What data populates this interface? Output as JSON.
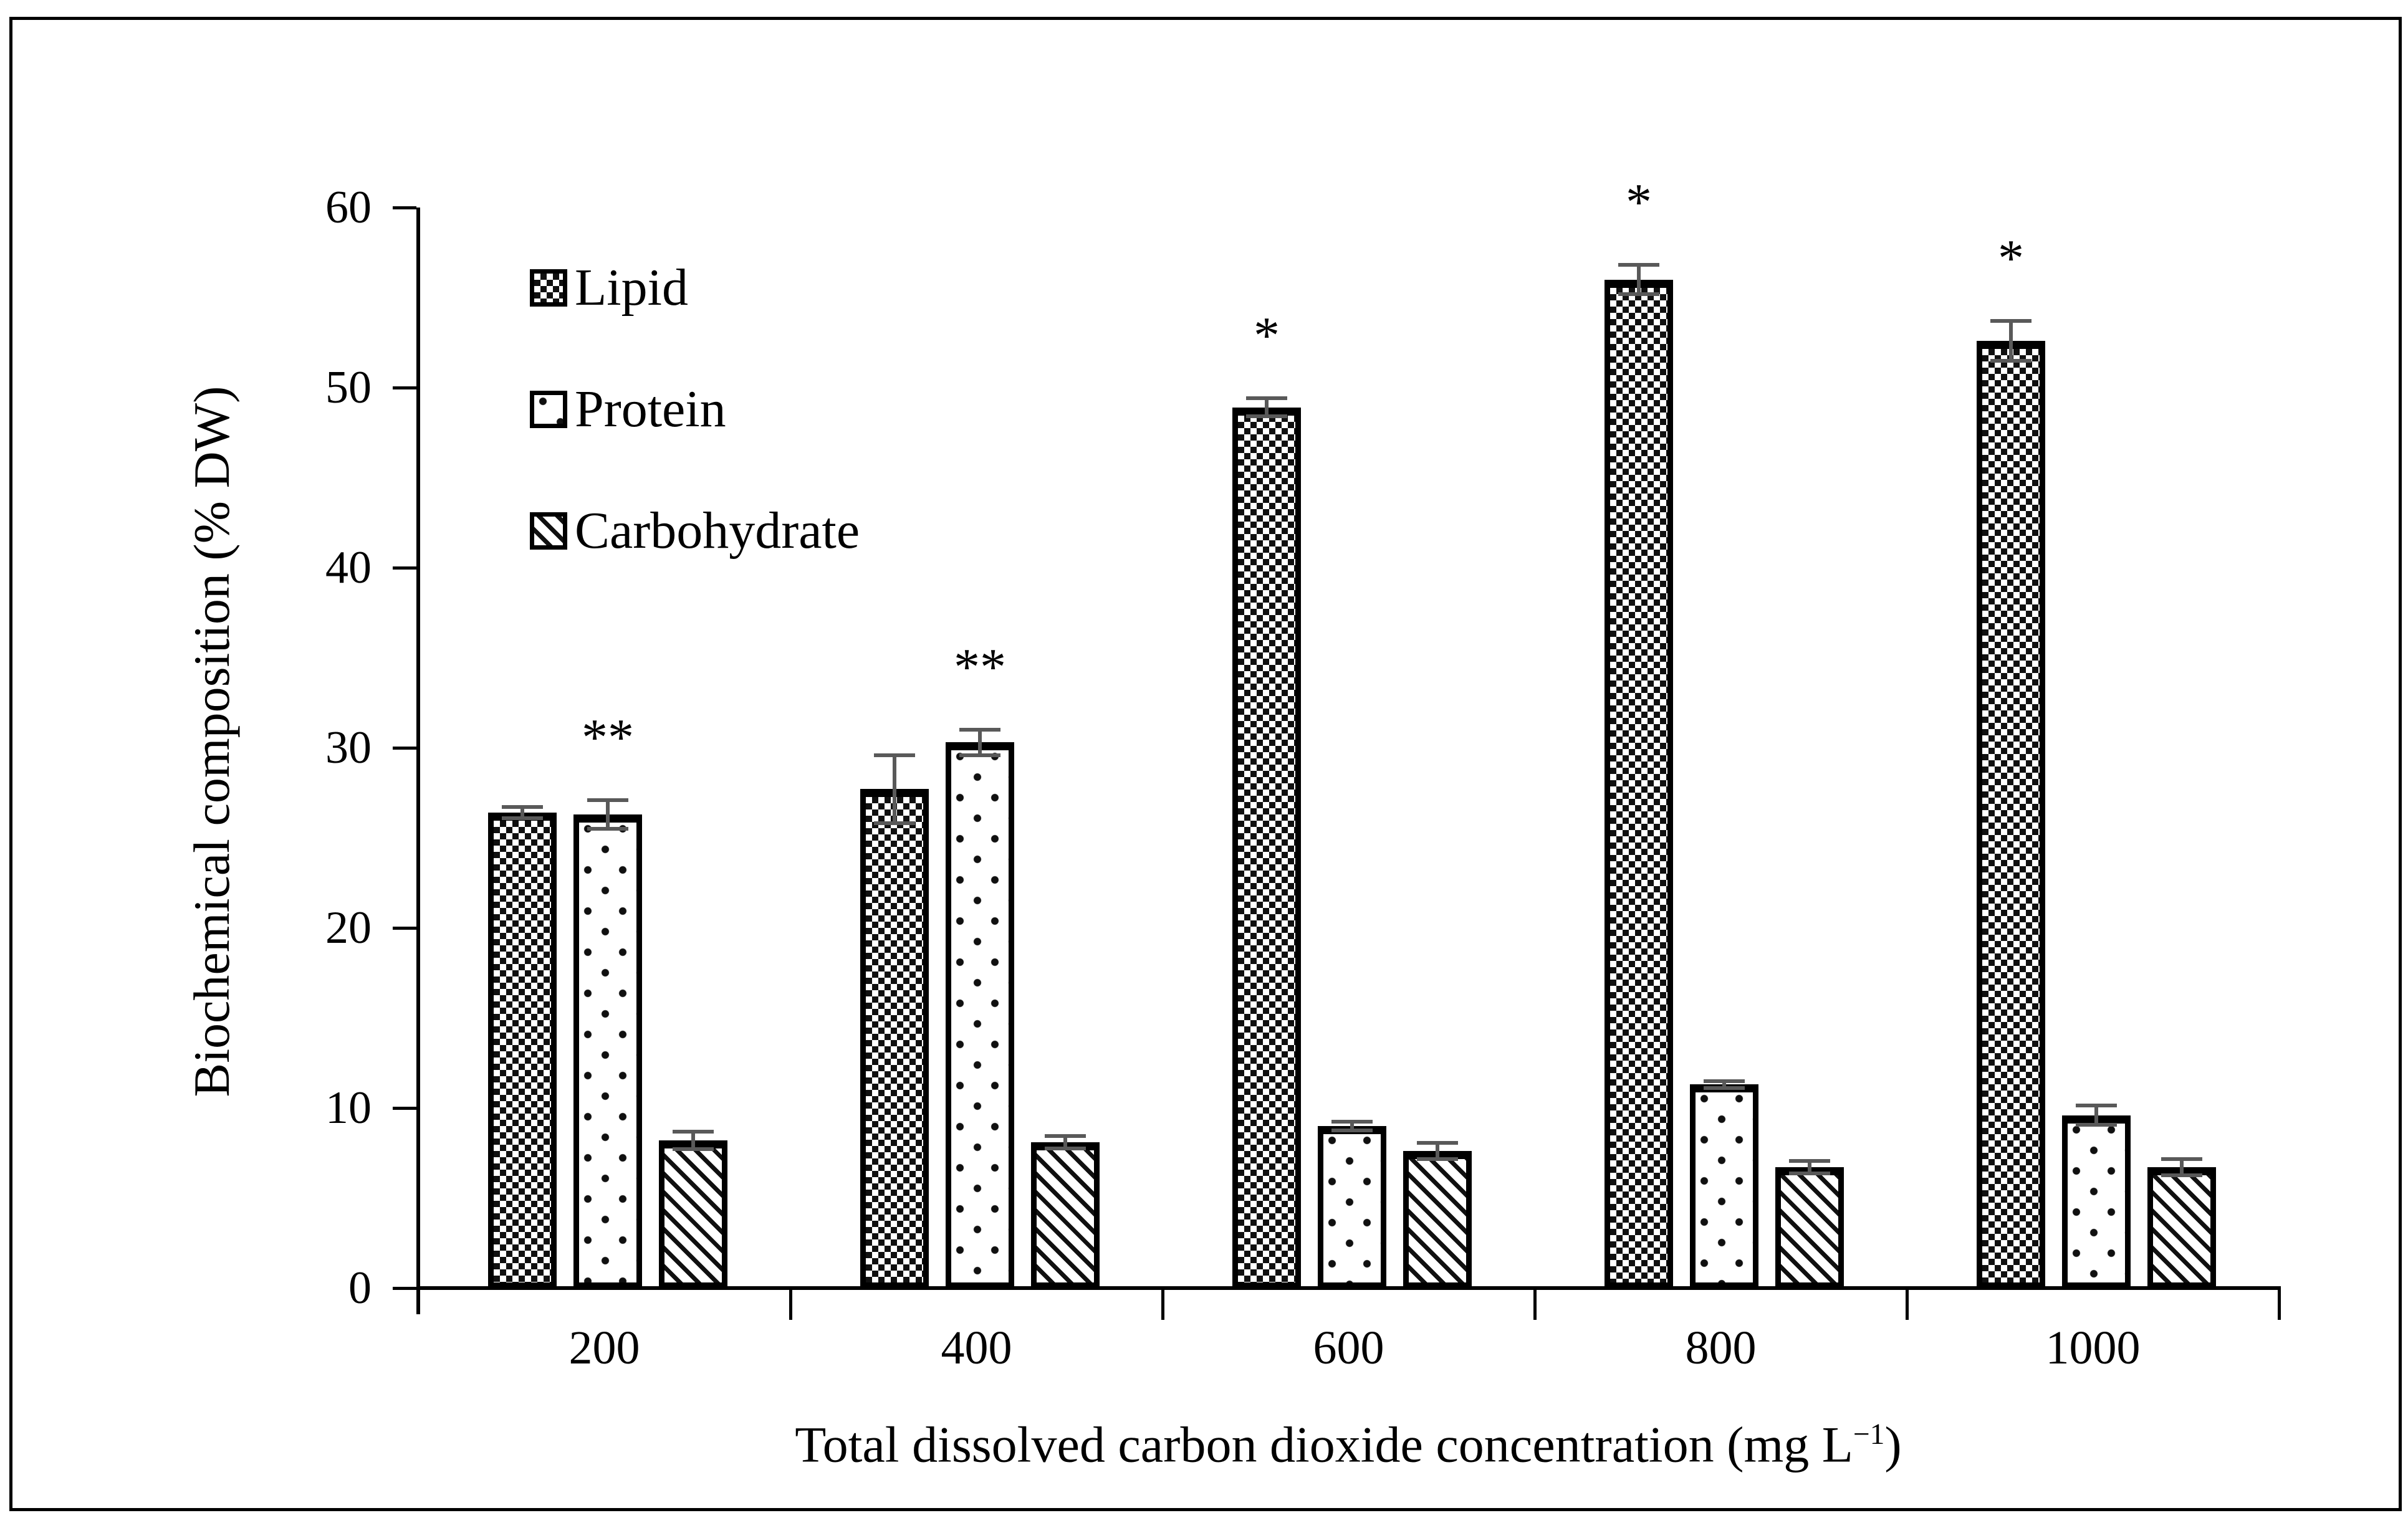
{
  "figure": {
    "background": "#ffffff",
    "border_color": "#000000"
  },
  "chart_data": {
    "type": "bar",
    "title": "",
    "xlabel": "Total dissolved carbon dioxide concentration (mg L⁻¹)",
    "xlabel_main": "Total dissolved carbon dioxide concentration (mg L",
    "xlabel_sup": "−1",
    "xlabel_end": ")",
    "ylabel": "Biochemical composition (% DW)",
    "categories": [
      200,
      400,
      600,
      800,
      1000
    ],
    "x_tick_labels": [
      "200",
      "400",
      "600",
      "800",
      "1000"
    ],
    "ylim": [
      0,
      60
    ],
    "y_tick_step": 10,
    "y_tick_labels": [
      "0",
      "10",
      "20",
      "30",
      "40",
      "50",
      "60"
    ],
    "grid": false,
    "legend_position": "upper-left-inside",
    "bar_edge_color": "#000000",
    "error_bar_color": "#595959",
    "series": [
      {
        "name": "Lipid",
        "pattern": "checkerboard",
        "values": [
          26.4,
          27.7,
          48.9,
          56.0,
          52.6
        ],
        "errors": [
          0.3,
          1.9,
          0.5,
          0.8,
          1.1
        ],
        "annotations": [
          "",
          "",
          "*",
          "*",
          "*"
        ]
      },
      {
        "name": "Protein",
        "pattern": "dots",
        "values": [
          26.3,
          30.3,
          9.0,
          11.3,
          9.6
        ],
        "errors": [
          0.8,
          0.7,
          0.25,
          0.2,
          0.55
        ],
        "annotations": [
          "**",
          "**",
          "",
          "",
          ""
        ]
      },
      {
        "name": "Carbohydrate",
        "pattern": "diagonal-hatch",
        "values": [
          8.2,
          8.1,
          7.6,
          6.7,
          6.7
        ],
        "errors": [
          0.5,
          0.35,
          0.45,
          0.35,
          0.45
        ],
        "annotations": [
          "",
          "",
          "",
          "",
          ""
        ]
      }
    ]
  }
}
